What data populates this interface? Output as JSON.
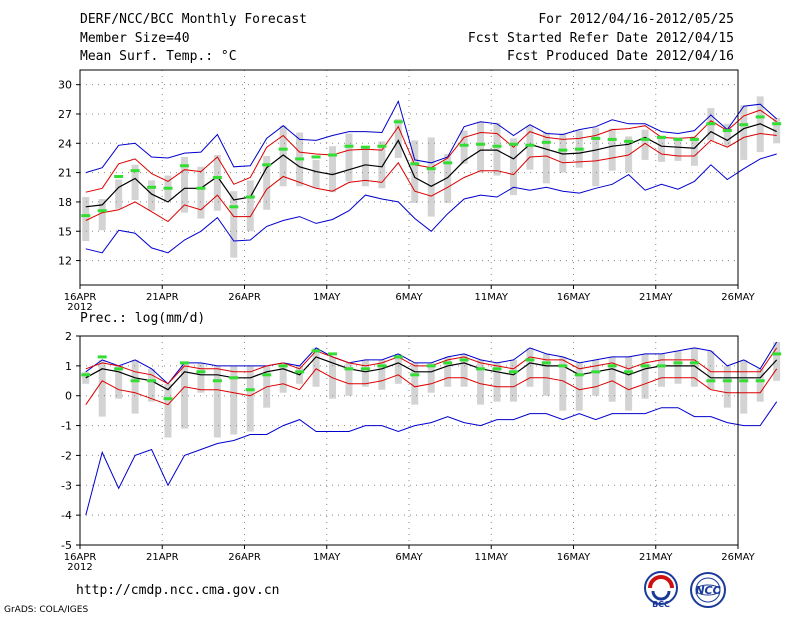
{
  "header": {
    "title": "DERF/NCC/BCC Monthly Forecast",
    "member_size": "Member Size=40",
    "variable": "Mean Surf. Temp.: °C",
    "period": "For 2012/04/16-2012/05/25",
    "start_refer": "Fcst Started Refer Date 2012/04/15",
    "produced": "Fcst Produced Date 2012/04/16"
  },
  "footer": {
    "url": "http://cmdp.ncc.cma.gov.cn",
    "grads": "GrADS: COLA/IGES",
    "logo_bcc": "BCC",
    "logo_ncc": "NCC"
  },
  "colors": {
    "ensemble_bar": "#d3d3d3",
    "ens_mean": "#000000",
    "spread": "#dd0000",
    "envelope": "#0000cc",
    "median": "#33dd33",
    "grid": "#888888"
  },
  "chart_data": [
    {
      "type": "line",
      "title": "Mean Surf. Temp.: °C",
      "x_tick_labels": [
        "16APR",
        "21APR",
        "26APR",
        "1MAY",
        "6MAY",
        "11MAY",
        "16MAY",
        "21MAY",
        "26MAY"
      ],
      "x_year_label": "2012",
      "x_tick_days": [
        0,
        5,
        10,
        15,
        20,
        25,
        30,
        35,
        40
      ],
      "xlim": [
        0,
        40
      ],
      "ylim": [
        9.5,
        31.5
      ],
      "y_ticks": [
        12,
        15,
        18,
        21,
        24,
        27,
        30
      ],
      "y_tick_labels": [
        "12",
        "15",
        "18",
        "21",
        "24",
        "27",
        "30"
      ],
      "series": [
        {
          "name": "mean",
          "values": [
            17.5,
            17.7,
            19.5,
            20.4,
            18.8,
            18.0,
            19.4,
            19.4,
            20.6,
            18.2,
            18.5,
            21.5,
            22.8,
            21.6,
            21.1,
            20.8,
            21.3,
            21.8,
            21.6,
            24.3,
            20.5,
            19.6,
            20.5,
            22.2,
            23.3,
            23.3,
            22.4,
            23.9,
            23.4,
            22.9,
            23.0,
            23.3,
            23.7,
            23.9,
            24.6,
            23.7,
            23.6,
            23.5,
            25.2,
            24.3,
            25.5,
            26.0,
            25.2
          ]
        },
        {
          "name": "upper_spread",
          "values": [
            19.0,
            19.4,
            21.9,
            22.4,
            20.9,
            20.1,
            21.3,
            21.1,
            22.6,
            19.8,
            20.5,
            23.6,
            24.8,
            23.1,
            22.9,
            22.8,
            23.3,
            23.4,
            23.3,
            25.7,
            21.8,
            21.5,
            22.5,
            24.6,
            25.1,
            25.0,
            23.6,
            25.2,
            24.6,
            24.4,
            24.5,
            24.8,
            25.4,
            25.5,
            25.8,
            24.6,
            24.5,
            24.6,
            26.3,
            25.3,
            26.8,
            27.4,
            26.2
          ]
        },
        {
          "name": "lower_spread",
          "values": [
            16.1,
            16.9,
            17.2,
            18.0,
            17.0,
            16.0,
            17.7,
            17.2,
            18.7,
            16.5,
            16.5,
            19.3,
            20.6,
            20.0,
            19.4,
            19.1,
            20.0,
            20.2,
            20.0,
            22.0,
            19.1,
            18.6,
            19.5,
            20.5,
            21.2,
            21.2,
            20.8,
            22.6,
            22.7,
            22.0,
            22.1,
            22.2,
            22.5,
            22.8,
            24.0,
            22.9,
            22.7,
            22.7,
            24.3,
            23.6,
            24.6,
            25.0,
            24.8
          ]
        },
        {
          "name": "max",
          "values": [
            21.0,
            21.5,
            23.8,
            24.0,
            22.6,
            22.5,
            23.0,
            23.1,
            24.9,
            21.6,
            21.7,
            24.5,
            25.8,
            24.4,
            24.3,
            24.8,
            25.2,
            25.2,
            25.1,
            28.3,
            22.3,
            22.0,
            22.6,
            25.7,
            26.2,
            26.0,
            24.8,
            25.9,
            25.0,
            24.9,
            25.4,
            25.7,
            26.4,
            26.0,
            26.0,
            25.2,
            25.0,
            25.3,
            26.9,
            25.4,
            27.8,
            28.0,
            26.5
          ]
        },
        {
          "name": "min",
          "values": [
            13.2,
            12.8,
            15.1,
            14.8,
            13.3,
            12.8,
            14.1,
            15.0,
            16.4,
            14.0,
            14.1,
            15.5,
            16.1,
            16.5,
            15.8,
            16.2,
            17.1,
            18.7,
            18.3,
            18.0,
            16.3,
            15.0,
            16.8,
            18.3,
            18.7,
            18.5,
            19.5,
            19.2,
            19.5,
            19.1,
            18.9,
            19.4,
            19.8,
            20.8,
            19.2,
            19.8,
            19.3,
            20.1,
            21.8,
            20.3,
            21.4,
            22.4,
            22.9
          ]
        },
        {
          "name": "bar_top",
          "values": [
            18.5,
            18.3,
            20.3,
            21.8,
            20.2,
            20.7,
            22.6,
            21.6,
            22.8,
            19.1,
            20.2,
            22.7,
            25.8,
            25.1,
            22.3,
            23.7,
            25.0,
            23.6,
            24.2,
            26.5,
            24.3,
            24.6,
            22.9,
            25.3,
            26.2,
            26.1,
            24.5,
            25.8,
            25.1,
            25.0,
            25.3,
            25.6,
            25.5,
            24.7,
            25.4,
            24.8,
            24.6,
            24.7,
            27.6,
            26.0,
            27.9,
            28.8,
            26.6
          ]
        },
        {
          "name": "bar_bottom",
          "values": [
            14.0,
            15.1,
            17.3,
            18.2,
            17.1,
            18.2,
            16.9,
            16.3,
            17.1,
            12.3,
            15.0,
            17.2,
            19.6,
            19.6,
            19.4,
            19.0,
            20.1,
            19.6,
            19.4,
            22.5,
            17.9,
            16.5,
            17.9,
            21.9,
            21.0,
            20.7,
            18.7,
            21.3,
            19.9,
            21.0,
            21.5,
            19.6,
            21.2,
            21.0,
            22.3,
            22.1,
            22.2,
            21.7,
            24.3,
            23.7,
            22.3,
            23.1,
            24.0
          ]
        },
        {
          "name": "median",
          "values": [
            16.6,
            17.1,
            20.6,
            21.2,
            19.5,
            19.4,
            21.7,
            19.4,
            20.5,
            17.5,
            18.5,
            21.8,
            23.4,
            22.4,
            22.6,
            22.8,
            23.7,
            23.6,
            23.7,
            26.2,
            21.9,
            21.4,
            22.0,
            23.8,
            23.9,
            23.7,
            23.9,
            23.8,
            24.1,
            23.3,
            23.4,
            24.5,
            24.4,
            24.2,
            24.4,
            24.6,
            24.4,
            24.4,
            26.0,
            25.3,
            25.9,
            26.7,
            26.0
          ]
        }
      ]
    },
    {
      "type": "line",
      "title": "Prec.: log(mm/d)",
      "x_tick_labels": [
        "16APR",
        "21APR",
        "26APR",
        "1MAY",
        "6MAY",
        "11MAY",
        "16MAY",
        "21MAY",
        "26MAY"
      ],
      "x_year_label": "2012",
      "x_tick_days": [
        0,
        5,
        10,
        15,
        20,
        25,
        30,
        35,
        40
      ],
      "xlim": [
        0,
        40
      ],
      "ylim": [
        -5,
        2
      ],
      "y_ticks": [
        -5,
        -4,
        -3,
        -2,
        -1,
        0,
        1,
        2
      ],
      "y_tick_labels": [
        "-5",
        "-4",
        "-3",
        "-2",
        "-1",
        "0",
        "1",
        "2"
      ],
      "series": [
        {
          "name": "mean",
          "values": [
            0.6,
            0.9,
            0.8,
            0.6,
            0.5,
            0.2,
            0.8,
            0.7,
            0.7,
            0.6,
            0.6,
            0.8,
            0.9,
            0.7,
            1.3,
            1.1,
            0.9,
            0.8,
            0.9,
            1.1,
            0.8,
            0.8,
            1.0,
            1.1,
            0.9,
            0.8,
            0.7,
            1.1,
            1.0,
            1.0,
            0.7,
            0.8,
            0.9,
            0.7,
            0.9,
            1.0,
            1.0,
            1.0,
            0.6,
            0.6,
            0.6,
            0.6,
            1.2
          ]
        },
        {
          "name": "upper_spread",
          "values": [
            0.9,
            1.1,
            1.0,
            0.8,
            0.7,
            0.4,
            1.0,
            0.9,
            0.9,
            0.8,
            0.8,
            1.0,
            1.1,
            0.9,
            1.5,
            1.3,
            1.1,
            1.0,
            1.1,
            1.3,
            1.0,
            1.0,
            1.2,
            1.3,
            1.1,
            1.0,
            0.9,
            1.3,
            1.2,
            1.2,
            0.9,
            1.0,
            1.1,
            0.9,
            1.1,
            1.2,
            1.2,
            1.2,
            0.8,
            0.8,
            0.8,
            0.8,
            1.6
          ]
        },
        {
          "name": "lower_spread",
          "values": [
            -0.3,
            0.5,
            0.2,
            0.1,
            -0.1,
            -0.3,
            0.3,
            0.2,
            0.2,
            0.1,
            0.0,
            0.3,
            0.4,
            0.2,
            0.9,
            0.6,
            0.4,
            0.4,
            0.5,
            0.7,
            0.3,
            0.4,
            0.6,
            0.6,
            0.4,
            0.3,
            0.3,
            0.6,
            0.6,
            0.5,
            0.2,
            0.3,
            0.5,
            0.2,
            0.4,
            0.6,
            0.6,
            0.6,
            0.2,
            0.1,
            0.1,
            0.1,
            0.9
          ]
        },
        {
          "name": "max",
          "values": [
            0.8,
            1.2,
            1.0,
            1.2,
            0.9,
            0.4,
            1.1,
            1.1,
            1.0,
            1.0,
            1.0,
            1.0,
            1.1,
            1.0,
            1.6,
            1.3,
            1.1,
            1.2,
            1.2,
            1.4,
            1.1,
            1.1,
            1.3,
            1.4,
            1.2,
            1.1,
            1.2,
            1.6,
            1.4,
            1.3,
            1.1,
            1.2,
            1.3,
            1.3,
            1.4,
            1.4,
            1.5,
            1.6,
            1.5,
            1.0,
            1.2,
            0.9,
            1.8
          ]
        },
        {
          "name": "min",
          "values": [
            -4.0,
            -1.9,
            -3.1,
            -2.0,
            -1.8,
            -3.0,
            -2.0,
            -1.8,
            -1.6,
            -1.5,
            -1.3,
            -1.3,
            -1.0,
            -0.8,
            -1.2,
            -1.2,
            -1.2,
            -1.0,
            -1.0,
            -1.2,
            -1.0,
            -0.9,
            -0.7,
            -0.9,
            -1.0,
            -0.8,
            -0.8,
            -0.6,
            -0.6,
            -0.8,
            -0.6,
            -0.8,
            -0.6,
            -0.6,
            -0.6,
            -0.4,
            -0.4,
            -0.7,
            -0.7,
            -0.9,
            -1.0,
            -1.0,
            -0.2
          ]
        },
        {
          "name": "bar_top",
          "values": [
            0.8,
            1.2,
            1.0,
            1.2,
            0.9,
            0.4,
            1.1,
            1.1,
            1.0,
            1.0,
            1.0,
            1.0,
            1.1,
            1.0,
            1.6,
            1.3,
            1.1,
            1.2,
            1.2,
            1.4,
            1.1,
            1.1,
            1.3,
            1.4,
            1.2,
            1.1,
            1.2,
            1.6,
            1.4,
            1.3,
            1.1,
            1.2,
            1.3,
            1.3,
            1.4,
            1.4,
            1.5,
            1.6,
            1.5,
            1.0,
            1.2,
            0.9,
            1.8
          ]
        },
        {
          "name": "bar_bottom",
          "values": [
            0.4,
            -0.7,
            -0.1,
            -0.6,
            -0.2,
            -1.4,
            -1.1,
            0.1,
            -1.4,
            -1.3,
            -1.2,
            -0.4,
            0.1,
            0.4,
            0.3,
            -0.1,
            0.0,
            0.3,
            0.2,
            0.4,
            -0.3,
            0.1,
            0.3,
            0.3,
            -0.3,
            -0.2,
            -0.2,
            0.3,
            0.0,
            -0.5,
            -0.5,
            0.0,
            -0.2,
            -0.5,
            -0.1,
            0.3,
            0.4,
            0.3,
            0.2,
            -0.4,
            -0.6,
            -0.2,
            0.5
          ]
        },
        {
          "name": "median",
          "values": [
            0.7,
            1.3,
            0.9,
            0.5,
            0.5,
            -0.1,
            1.1,
            0.8,
            0.5,
            0.6,
            0.2,
            0.7,
            1.0,
            0.8,
            1.5,
            1.4,
            0.9,
            0.9,
            1.0,
            1.3,
            0.7,
            1.0,
            1.1,
            1.2,
            0.9,
            0.9,
            0.8,
            1.2,
            1.1,
            1.0,
            0.7,
            0.8,
            1.0,
            0.8,
            1.0,
            1.0,
            1.1,
            1.1,
            0.5,
            0.5,
            0.5,
            0.5,
            1.4
          ]
        }
      ]
    }
  ]
}
